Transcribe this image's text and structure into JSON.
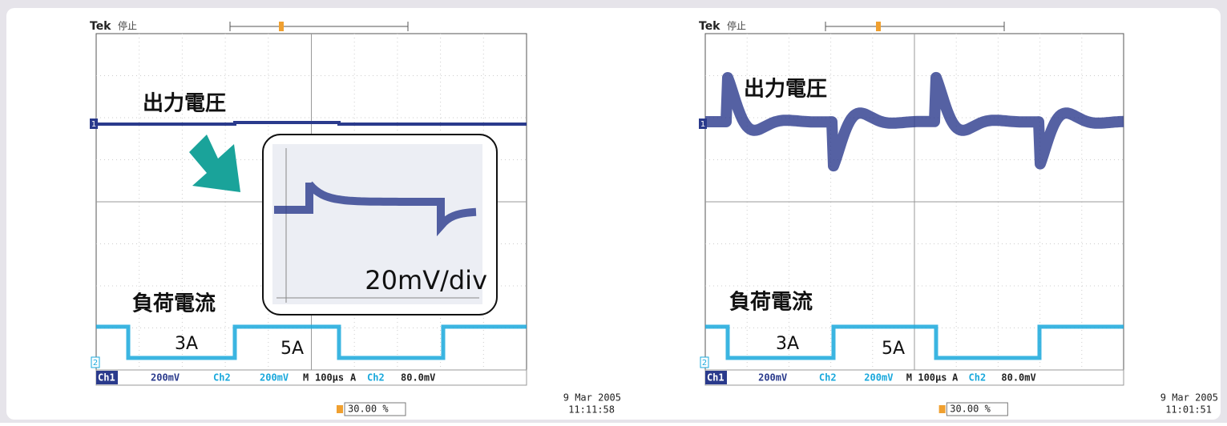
{
  "scopes": [
    {
      "brand": "Tek",
      "status": "停止",
      "ch1_marker": "1",
      "ch2_marker": "2",
      "ch1_label": "出力電圧",
      "ch2_label": "負荷電流",
      "current_low": "3A",
      "current_high": "5A",
      "inset": "20mV/div",
      "status_bar": [
        "Ch1",
        "200mV",
        "Ch2",
        "200mV",
        "M",
        "100µs",
        "A",
        "Ch2",
        "80.0mV"
      ],
      "trigger_position": "30.00 %",
      "date": "9 Mar 2005",
      "time": "11:11:58"
    },
    {
      "brand": "Tek",
      "status": "停止",
      "ch1_marker": "1",
      "ch2_marker": "2",
      "ch1_label": "出力電圧",
      "ch2_label": "負荷電流",
      "current_low": "3A",
      "current_high": "5A",
      "status_bar": [
        "Ch1",
        "200mV",
        "Ch2",
        "200mV",
        "M",
        "100µs",
        "A",
        "Ch2",
        "80.0mV"
      ],
      "trigger_position": "30.00 %",
      "date": "9 Mar 2005",
      "time": "11:01:51"
    }
  ]
}
